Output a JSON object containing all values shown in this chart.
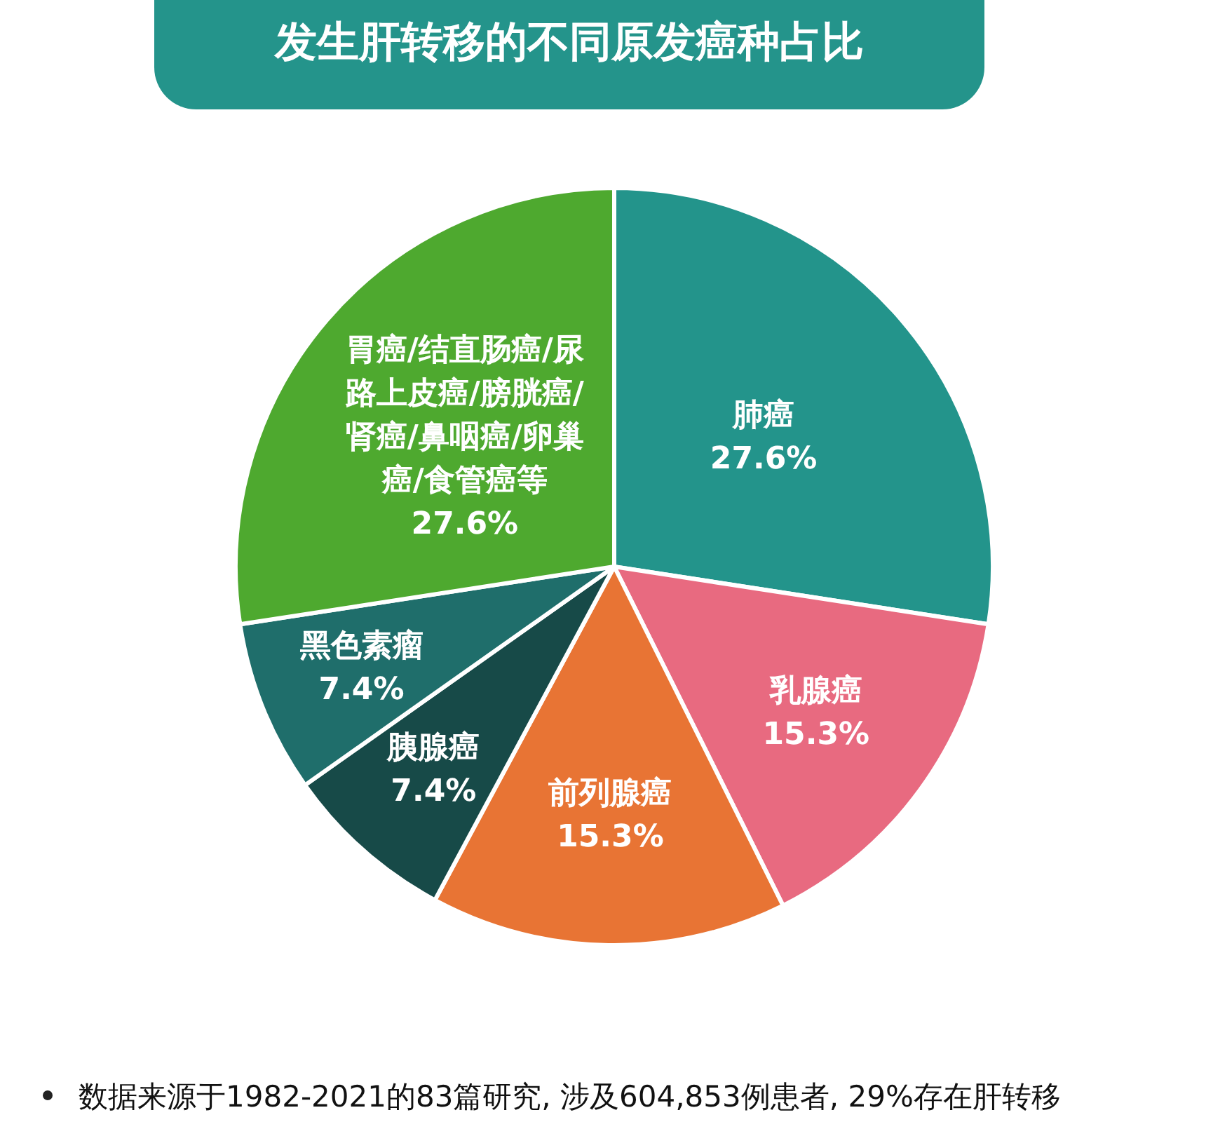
{
  "chart_data": {
    "type": "pie",
    "title": "发生肝转移的不同原发癌种占比",
    "categories": [
      "肺癌",
      "乳腺癌",
      "前列腺癌",
      "胰腺癌",
      "黑色素瘤",
      "胃癌/结直肠癌/尿路上皮癌/膀胱癌/肾癌/鼻咽癌/卵巢癌/食管癌等"
    ],
    "values": [
      27.6,
      15.3,
      15.3,
      7.4,
      7.4,
      27.6
    ],
    "value_labels": [
      "27.6%",
      "15.3%",
      "15.3%",
      "7.4%",
      "7.4%",
      "27.6%"
    ],
    "colors": [
      "#23948b",
      "#e86a80",
      "#e87434",
      "#174a48",
      "#1f6e6b",
      "#4ea92f"
    ],
    "annotations": [
      "数据来源于1982-2021的83篇研究, 涉及604,853例患者, 29%存在肝转移"
    ]
  }
}
